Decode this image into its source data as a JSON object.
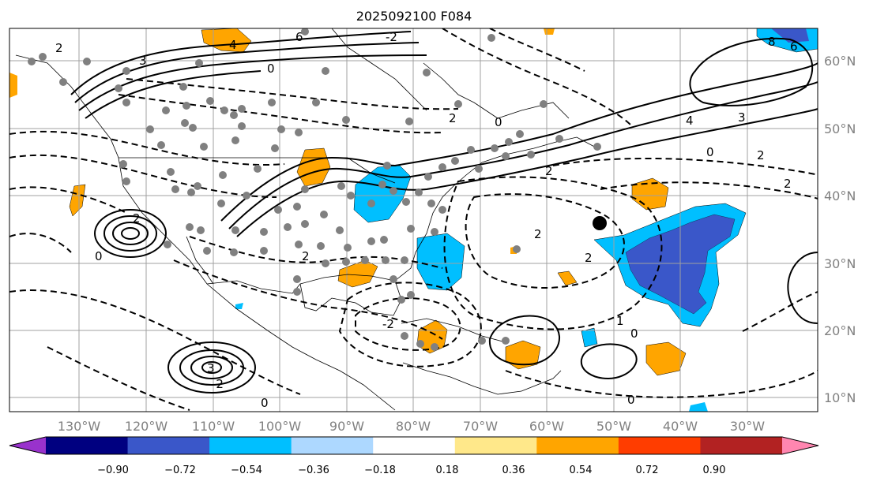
{
  "title": "2025092100 F084",
  "map": {
    "lon_ticks": [
      "130°W",
      "120°W",
      "110°W",
      "100°W",
      "90°W",
      "80°W",
      "70°W",
      "60°W",
      "50°W",
      "40°W",
      "30°W"
    ],
    "lat_ticks": [
      "60°N",
      "50°N",
      "40°N",
      "30°N",
      "20°N",
      "10°N"
    ],
    "contour_labels": [
      "6",
      "4",
      "3",
      "2",
      "0",
      "-2",
      "4",
      "3",
      "2",
      "0",
      "2",
      "2",
      "0",
      "2",
      "2",
      "2",
      "3",
      "-2",
      "2",
      "1",
      "0",
      "0",
      "8",
      "6",
      "2",
      "0",
      "-2",
      "0"
    ],
    "marker_colors": {
      "station": "#808080",
      "feature": "#000000"
    }
  },
  "colorbar": {
    "labels": [
      "−0.90",
      "−0.72",
      "−0.54",
      "−0.36",
      "−0.18",
      "0.18",
      "0.36",
      "0.54",
      "0.72",
      "0.90"
    ],
    "colors": [
      "#9932cc",
      "#000080",
      "#3a57c9",
      "#00bfff",
      "#add8ff",
      "#ffffff",
      "#ffe88a",
      "#ffa500",
      "#ff3d00",
      "#b22222",
      "#ff86b0"
    ]
  },
  "legend_colors": {
    "contour_line": "#000000",
    "grid": "#a0a0a0",
    "tick_text": "#808080"
  }
}
